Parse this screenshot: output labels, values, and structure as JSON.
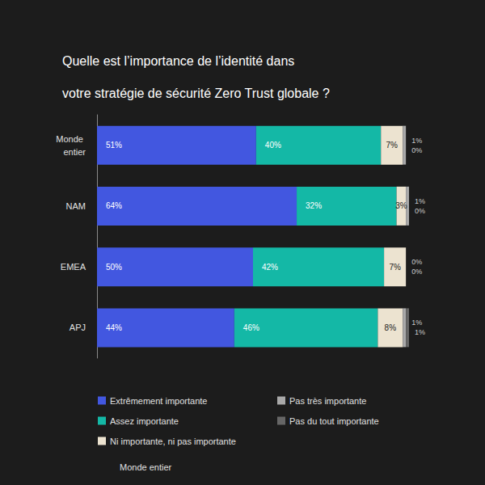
{
  "chart_data": {
    "type": "bar",
    "orientation": "horizontal",
    "stacked": true,
    "data_labels": true,
    "tick_labels": "y",
    "legend": "bottom",
    "title": [
      "Quelle est l’importance de l’identité dans",
      "votre stratégie de sécurité Zero Trust globale ?"
    ],
    "annotation": "Monde entier",
    "categories": [
      "Monde entier",
      "NAM",
      "EMEA",
      "APJ"
    ],
    "xlim": [
      0,
      100
    ],
    "series": [
      {
        "name": "Extrêmement importante",
        "color": "#4257e0",
        "values": [
          51,
          64,
          50,
          44
        ],
        "value_labels": [
          "51%",
          "64%",
          "50%",
          "44%"
        ]
      },
      {
        "name": "Assez importante",
        "color": "#14b8a6",
        "values": [
          40,
          32,
          42,
          46
        ],
        "value_labels": [
          "40%",
          "32%",
          "42%",
          "46%"
        ]
      },
      {
        "name": "Ni importante, ni pas importante",
        "color": "#ece3d0",
        "values": [
          7,
          3,
          7,
          8
        ],
        "value_labels": [
          "7%",
          "3%",
          "7%",
          "8%"
        ]
      },
      {
        "name": "Pas très importante",
        "color": "#a9a9a9",
        "values": [
          1,
          1,
          0,
          1
        ],
        "value_labels": [
          "1%",
          "1%",
          "0%",
          "1%"
        ]
      },
      {
        "name": "Pas du tout importante",
        "color": "#666666",
        "values": [
          0,
          0,
          0,
          1
        ],
        "value_labels": [
          "0%",
          "0%",
          "0%",
          "1%"
        ]
      }
    ]
  }
}
